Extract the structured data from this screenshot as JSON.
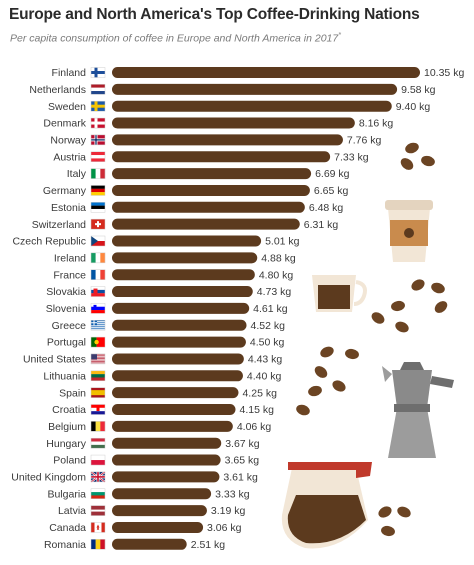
{
  "header": {
    "title": "Europe and North America's Top Coffee-Drinking Nations",
    "subtitle": "Per capita consumption of coffee in Europe and North America in 2017",
    "subtitle_mark": "*"
  },
  "colors": {
    "bar": "#5c3a1e",
    "bean": "#6b4423",
    "cup": "#f2e6d6",
    "accent": "#8a8a8a"
  },
  "chart_data": {
    "type": "bar",
    "orientation": "horizontal",
    "title": "Europe and North America's Top Coffee-Drinking Nations",
    "subtitle": "Per capita consumption of coffee in Europe and North America in 2017*",
    "unit": "kg",
    "categories": [
      "Finland",
      "Netherlands",
      "Sweden",
      "Denmark",
      "Norway",
      "Austria",
      "Italy",
      "Germany",
      "Estonia",
      "Switzerland",
      "Czech Republic",
      "Ireland",
      "France",
      "Slovakia",
      "Slovenia",
      "Greece",
      "Portugal",
      "United States",
      "Lithuania",
      "Spain",
      "Croatia",
      "Belgium",
      "Hungary",
      "Poland",
      "United Kingdom",
      "Bulgaria",
      "Latvia",
      "Canada",
      "Romania"
    ],
    "values": [
      10.35,
      9.58,
      9.4,
      8.16,
      7.76,
      7.33,
      6.69,
      6.65,
      6.48,
      6.31,
      5.01,
      4.88,
      4.8,
      4.73,
      4.61,
      4.52,
      4.5,
      4.43,
      4.4,
      4.25,
      4.15,
      4.06,
      3.67,
      3.65,
      3.61,
      3.33,
      3.19,
      3.06,
      2.51
    ],
    "value_labels": [
      "10.35 kg",
      "9.58 kg",
      "9.40 kg",
      "8.16 kg",
      "7.76 kg",
      "7.33 kg",
      "6.69 kg",
      "6.65 kg",
      "6.48 kg",
      "6.31 kg",
      "5.01 kg",
      "4.88 kg",
      "4.80 kg",
      "4.73 kg",
      "4.61 kg",
      "4.52 kg",
      "4.50 kg",
      "4.43 kg",
      "4.40 kg",
      "4.25 kg",
      "4.15 kg",
      "4.06 kg",
      "3.67 kg",
      "3.65 kg",
      "3.61 kg",
      "3.33 kg",
      "3.19 kg",
      "3.06 kg",
      "2.51 kg"
    ],
    "flags": [
      "finland-flag",
      "netherlands-flag",
      "sweden-flag",
      "denmark-flag",
      "norway-flag",
      "austria-flag",
      "italy-flag",
      "germany-flag",
      "estonia-flag",
      "switzerland-flag",
      "czech-republic-flag",
      "ireland-flag",
      "france-flag",
      "slovakia-flag",
      "slovenia-flag",
      "greece-flag",
      "portugal-flag",
      "united-states-flag",
      "lithuania-flag",
      "spain-flag",
      "croatia-flag",
      "belgium-flag",
      "hungary-flag",
      "poland-flag",
      "united-kingdom-flag",
      "bulgaria-flag",
      "latvia-flag",
      "canada-flag",
      "romania-flag"
    ],
    "xlim": [
      0,
      10.35
    ],
    "grid": false,
    "legend": "none"
  },
  "decorations": [
    "coffee-beans-icon",
    "paper-coffee-cup-icon",
    "espresso-cup-icon",
    "moka-pot-icon",
    "coffee-carafe-icon"
  ]
}
